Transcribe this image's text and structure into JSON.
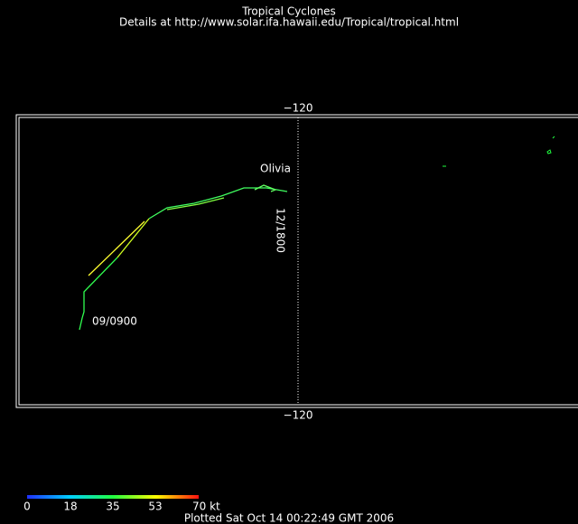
{
  "header": {
    "title": "Tropical Cyclones",
    "subtitle": "Details at http://www.solar.ifa.hawaii.edu/Tropical/tropical.html"
  },
  "map": {
    "top_longitude_label": "−120",
    "bottom_longitude_label": "−120",
    "storm_name": "Olivia",
    "end_time_label": "12/1800",
    "start_time_label": "09/0900"
  },
  "colorbar": {
    "labels": [
      "0",
      "18",
      "35",
      "53",
      "70 kt"
    ]
  },
  "footer": {
    "plotted": "Plotted Sat Oct 14 00:22:49 GMT 2006"
  }
}
